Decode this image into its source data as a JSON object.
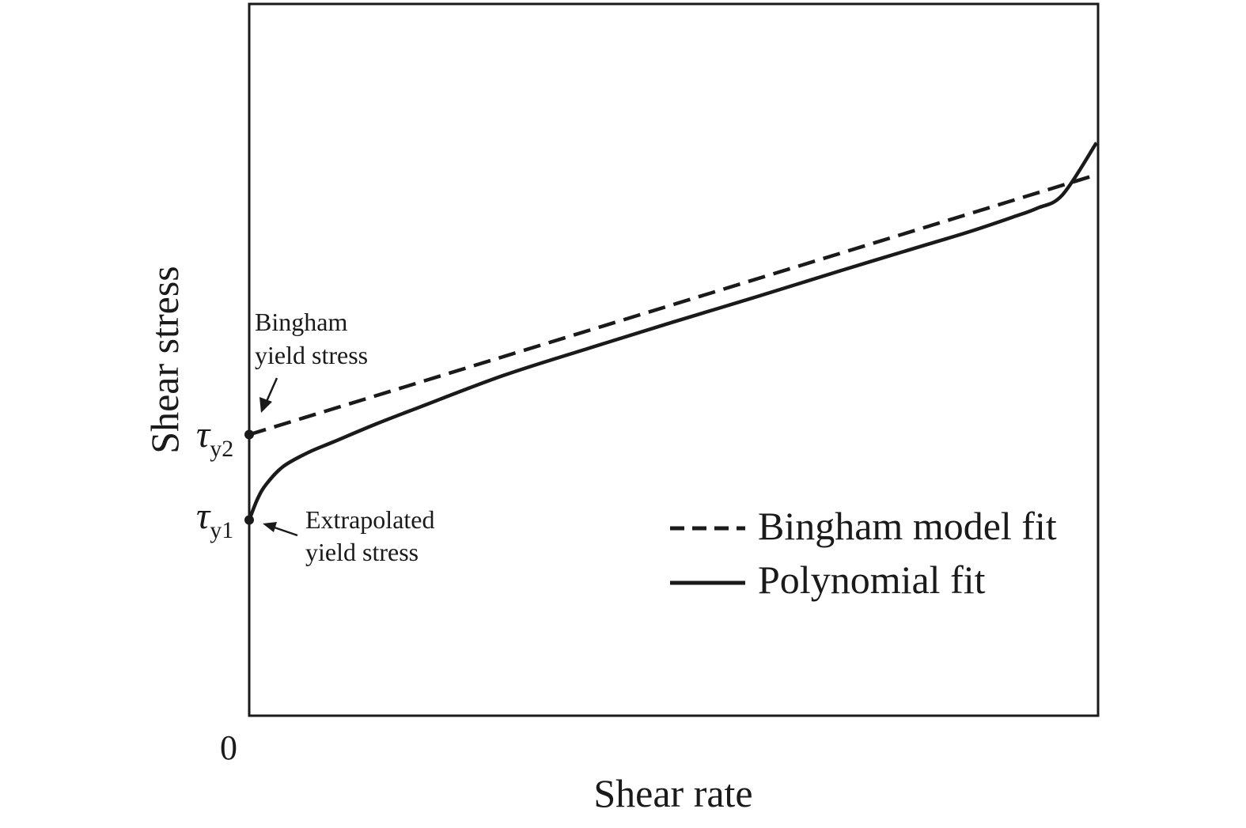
{
  "chart_data": {
    "type": "line",
    "xlabel": "Shear rate",
    "ylabel": "Shear stress",
    "x_tick_labels": [
      "0"
    ],
    "xlim": [
      0,
      1
    ],
    "ylim": [
      0,
      1
    ],
    "grid": false,
    "legend_position": "bottom-right",
    "series": [
      {
        "name": "Bingham model fit",
        "style": "dashed",
        "color": "#1a1a1a",
        "x": [
          0,
          1
        ],
        "y": [
          0.395,
          0.76
        ]
      },
      {
        "name": "Polynomial fit",
        "style": "solid",
        "color": "#1a1a1a",
        "x": [
          0,
          0.01,
          0.02,
          0.04,
          0.07,
          0.1,
          0.15,
          0.2,
          0.3,
          0.4,
          0.5,
          0.6,
          0.7,
          0.8,
          0.85,
          0.9,
          0.93,
          0.96,
          1.0
        ],
        "y": [
          0.275,
          0.305,
          0.325,
          0.35,
          0.37,
          0.385,
          0.41,
          0.433,
          0.478,
          0.516,
          0.553,
          0.589,
          0.626,
          0.662,
          0.68,
          0.7,
          0.713,
          0.732,
          0.805
        ]
      }
    ],
    "annotations": [
      {
        "text_line1": "Bingham",
        "text_line2": "yield stress",
        "points_to": "tau_y2"
      },
      {
        "text_line1": "Extrapolated",
        "text_line2": "yield stress",
        "points_to": "tau_y1"
      }
    ],
    "markers": [
      {
        "symbol": "τ",
        "subscript": "y2",
        "x": 0,
        "y": 0.395
      },
      {
        "symbol": "τ",
        "subscript": "y1",
        "x": 0,
        "y": 0.275
      }
    ]
  }
}
